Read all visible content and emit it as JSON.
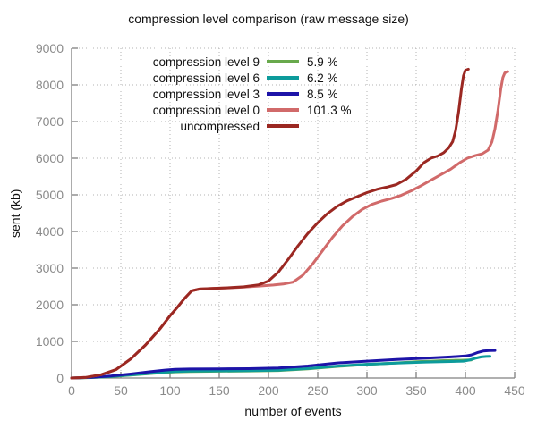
{
  "chart_data": {
    "type": "line",
    "title": "compression level comparison (raw message size)",
    "xlabel": "number of events",
    "ylabel": "sent (kb)",
    "xlim": [
      0,
      450
    ],
    "ylim": [
      0,
      9000
    ],
    "xticks": [
      0,
      50,
      100,
      150,
      200,
      250,
      300,
      350,
      400,
      450
    ],
    "yticks": [
      0,
      1000,
      2000,
      3000,
      4000,
      5000,
      6000,
      7000,
      8000,
      9000
    ],
    "grid": true,
    "legend_position": "top-left-inside",
    "series": [
      {
        "id": "compression-level-9",
        "name": "compression level 9",
        "ratio_label": "5.9 %",
        "color": "#68a94c",
        "points": [
          [
            0,
            0
          ],
          [
            20,
            13
          ],
          [
            40,
            40
          ],
          [
            60,
            80
          ],
          [
            80,
            122
          ],
          [
            95,
            152
          ],
          [
            105,
            168
          ],
          [
            120,
            178
          ],
          [
            150,
            186
          ],
          [
            180,
            192
          ],
          [
            210,
            205
          ],
          [
            240,
            250
          ],
          [
            270,
            318
          ],
          [
            300,
            370
          ],
          [
            330,
            412
          ],
          [
            350,
            443
          ],
          [
            365,
            462
          ],
          [
            378,
            475
          ],
          [
            388,
            482
          ],
          [
            395,
            486
          ],
          [
            402,
            490
          ],
          [
            406,
            494
          ]
        ]
      },
      {
        "id": "compression-level-6",
        "name": "compression level 6",
        "ratio_label": "6.2 %",
        "color": "#0d9b9b",
        "points": [
          [
            0,
            0
          ],
          [
            20,
            14
          ],
          [
            40,
            42
          ],
          [
            60,
            85
          ],
          [
            80,
            130
          ],
          [
            95,
            162
          ],
          [
            105,
            178
          ],
          [
            120,
            188
          ],
          [
            150,
            195
          ],
          [
            180,
            200
          ],
          [
            210,
            212
          ],
          [
            240,
            258
          ],
          [
            270,
            328
          ],
          [
            300,
            376
          ],
          [
            330,
            410
          ],
          [
            360,
            436
          ],
          [
            385,
            452
          ],
          [
            398,
            462
          ],
          [
            404,
            490
          ],
          [
            410,
            540
          ],
          [
            416,
            575
          ],
          [
            421,
            588
          ],
          [
            425,
            591
          ]
        ]
      },
      {
        "id": "compression-level-3",
        "name": "compression level 3",
        "ratio_label": "8.5 %",
        "color": "#1d14a8",
        "points": [
          [
            0,
            0
          ],
          [
            20,
            18
          ],
          [
            40,
            55
          ],
          [
            60,
            110
          ],
          [
            80,
            172
          ],
          [
            95,
            218
          ],
          [
            105,
            236
          ],
          [
            120,
            246
          ],
          [
            150,
            251
          ],
          [
            180,
            257
          ],
          [
            210,
            272
          ],
          [
            240,
            330
          ],
          [
            270,
            412
          ],
          [
            300,
            462
          ],
          [
            330,
            508
          ],
          [
            360,
            545
          ],
          [
            385,
            575
          ],
          [
            400,
            602
          ],
          [
            406,
            632
          ],
          [
            412,
            692
          ],
          [
            418,
            736
          ],
          [
            424,
            750
          ],
          [
            430,
            753
          ]
        ]
      },
      {
        "id": "compression-level-0",
        "name": "compression level 0",
        "ratio_label": "101.3 %",
        "color": "#d16a6a",
        "points": [
          [
            0,
            0
          ],
          [
            15,
            20
          ],
          [
            30,
            90
          ],
          [
            45,
            230
          ],
          [
            60,
            520
          ],
          [
            75,
            900
          ],
          [
            90,
            1350
          ],
          [
            100,
            1700
          ],
          [
            108,
            1950
          ],
          [
            115,
            2180
          ],
          [
            122,
            2380
          ],
          [
            130,
            2430
          ],
          [
            145,
            2450
          ],
          [
            160,
            2462
          ],
          [
            175,
            2480
          ],
          [
            190,
            2510
          ],
          [
            205,
            2540
          ],
          [
            215,
            2565
          ],
          [
            225,
            2620
          ],
          [
            235,
            2810
          ],
          [
            245,
            3120
          ],
          [
            255,
            3480
          ],
          [
            265,
            3840
          ],
          [
            275,
            4150
          ],
          [
            285,
            4400
          ],
          [
            295,
            4600
          ],
          [
            305,
            4740
          ],
          [
            315,
            4830
          ],
          [
            325,
            4900
          ],
          [
            335,
            4990
          ],
          [
            345,
            5110
          ],
          [
            355,
            5250
          ],
          [
            365,
            5400
          ],
          [
            375,
            5550
          ],
          [
            385,
            5700
          ],
          [
            395,
            5890
          ],
          [
            402,
            6000
          ],
          [
            410,
            6070
          ],
          [
            417,
            6120
          ],
          [
            423,
            6220
          ],
          [
            427,
            6450
          ],
          [
            430,
            6800
          ],
          [
            433,
            7300
          ],
          [
            436,
            7900
          ],
          [
            438,
            8200
          ],
          [
            440,
            8330
          ],
          [
            443,
            8360
          ]
        ]
      },
      {
        "id": "uncompressed",
        "name": "uncompressed",
        "ratio_label": "",
        "color": "#9b2822",
        "points": [
          [
            0,
            0
          ],
          [
            15,
            20
          ],
          [
            30,
            90
          ],
          [
            45,
            230
          ],
          [
            60,
            520
          ],
          [
            75,
            900
          ],
          [
            90,
            1350
          ],
          [
            100,
            1700
          ],
          [
            108,
            1950
          ],
          [
            115,
            2180
          ],
          [
            122,
            2380
          ],
          [
            130,
            2430
          ],
          [
            145,
            2450
          ],
          [
            160,
            2465
          ],
          [
            175,
            2490
          ],
          [
            190,
            2545
          ],
          [
            200,
            2650
          ],
          [
            210,
            2890
          ],
          [
            220,
            3240
          ],
          [
            230,
            3610
          ],
          [
            240,
            3950
          ],
          [
            250,
            4240
          ],
          [
            260,
            4490
          ],
          [
            270,
            4690
          ],
          [
            280,
            4840
          ],
          [
            290,
            4950
          ],
          [
            300,
            5060
          ],
          [
            310,
            5150
          ],
          [
            320,
            5210
          ],
          [
            330,
            5280
          ],
          [
            340,
            5430
          ],
          [
            350,
            5650
          ],
          [
            358,
            5880
          ],
          [
            365,
            6000
          ],
          [
            372,
            6060
          ],
          [
            378,
            6150
          ],
          [
            383,
            6280
          ],
          [
            387,
            6450
          ],
          [
            390,
            6750
          ],
          [
            393,
            7250
          ],
          [
            396,
            7900
          ],
          [
            398,
            8250
          ],
          [
            400,
            8400
          ],
          [
            403,
            8430
          ]
        ]
      }
    ]
  },
  "colors": {
    "axis": "#808080",
    "grid": "#b3b3b3",
    "tick_text": "#8a8a8a",
    "text": "#111111",
    "background": "#ffffff"
  }
}
